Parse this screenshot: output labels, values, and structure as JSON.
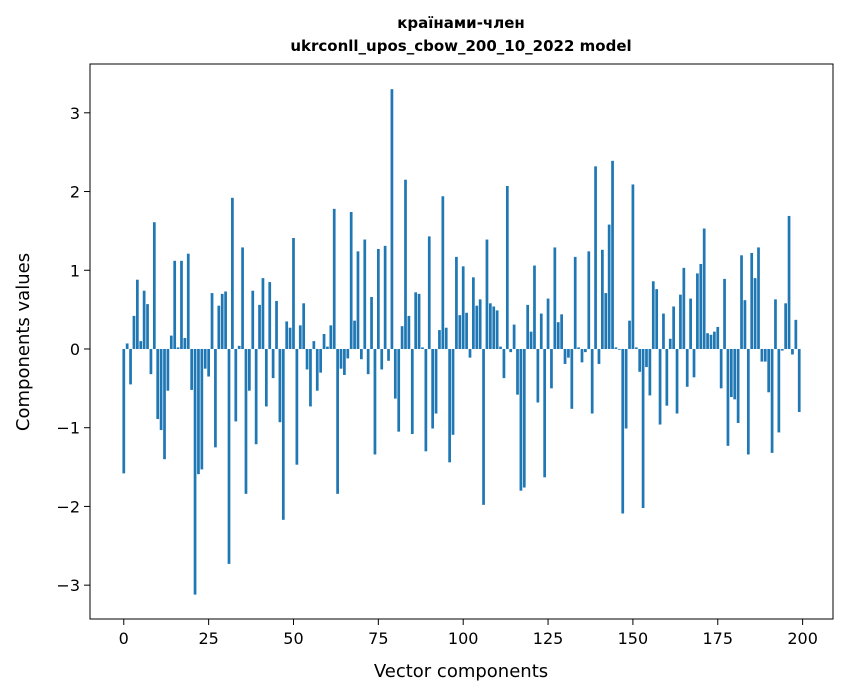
{
  "chart_data": {
    "type": "bar",
    "title_line1": "країнами-член",
    "title_line2": "ukrconll_upos_cbow_200_10_2022 model",
    "xlabel": "Vector components",
    "ylabel": "Components values",
    "xlim": [
      -9.95,
      208.95
    ],
    "ylim": [
      -3.43,
      3.62
    ],
    "xticks": [
      0,
      25,
      50,
      75,
      100,
      125,
      150,
      175,
      200
    ],
    "yticks": [
      -3,
      -2,
      -1,
      0,
      1,
      2,
      3
    ],
    "ytick_labels": [
      "−3",
      "−2",
      "−1",
      "0",
      "1",
      "2",
      "3"
    ],
    "bar_color": "#1f77b4",
    "grid": false,
    "x": [
      0,
      1,
      2,
      3,
      4,
      5,
      6,
      7,
      8,
      9,
      10,
      11,
      12,
      13,
      14,
      15,
      16,
      17,
      18,
      19,
      20,
      21,
      22,
      23,
      24,
      25,
      26,
      27,
      28,
      29,
      30,
      31,
      32,
      33,
      34,
      35,
      36,
      37,
      38,
      39,
      40,
      41,
      42,
      43,
      44,
      45,
      46,
      47,
      48,
      49,
      50,
      51,
      52,
      53,
      54,
      55,
      56,
      57,
      58,
      59,
      60,
      61,
      62,
      63,
      64,
      65,
      66,
      67,
      68,
      69,
      70,
      71,
      72,
      73,
      74,
      75,
      76,
      77,
      78,
      79,
      80,
      81,
      82,
      83,
      84,
      85,
      86,
      87,
      88,
      89,
      90,
      91,
      92,
      93,
      94,
      95,
      96,
      97,
      98,
      99,
      100,
      101,
      102,
      103,
      104,
      105,
      106,
      107,
      108,
      109,
      110,
      111,
      112,
      113,
      114,
      115,
      116,
      117,
      118,
      119,
      120,
      121,
      122,
      123,
      124,
      125,
      126,
      127,
      128,
      129,
      130,
      131,
      132,
      133,
      134,
      135,
      136,
      137,
      138,
      139,
      140,
      141,
      142,
      143,
      144,
      145,
      146,
      147,
      148,
      149,
      150,
      151,
      152,
      153,
      154,
      155,
      156,
      157,
      158,
      159,
      160,
      161,
      162,
      163,
      164,
      165,
      166,
      167,
      168,
      169,
      170,
      171,
      172,
      173,
      174,
      175,
      176,
      177,
      178,
      179,
      180,
      181,
      182,
      183,
      184,
      185,
      186,
      187,
      188,
      189,
      190,
      191,
      192,
      193,
      194,
      195,
      196,
      197,
      198,
      199
    ],
    "values": [
      -1.58,
      0.07,
      -0.45,
      0.42,
      0.88,
      0.1,
      0.74,
      0.57,
      -0.32,
      1.61,
      -0.89,
      -1.03,
      -1.4,
      -0.53,
      0.17,
      1.12,
      0.02,
      1.12,
      0.14,
      1.21,
      -0.52,
      -3.12,
      -1.59,
      -1.53,
      -0.25,
      -0.35,
      0.71,
      -1.25,
      0.55,
      0.7,
      0.73,
      -2.73,
      1.92,
      -0.92,
      0.04,
      1.29,
      -1.84,
      -0.53,
      0.74,
      -1.21,
      0.56,
      0.9,
      -0.73,
      0.85,
      -0.37,
      0.61,
      -0.93,
      -2.17,
      0.35,
      0.27,
      1.41,
      -1.47,
      0.3,
      0.58,
      -0.26,
      -0.73,
      0.1,
      -0.53,
      -0.3,
      0.19,
      0.03,
      0.3,
      1.78,
      -1.84,
      -0.25,
      -0.33,
      -0.12,
      1.74,
      0.36,
      1.24,
      -0.13,
      1.39,
      -0.32,
      0.66,
      -1.34,
      1.27,
      -0.26,
      1.31,
      -0.15,
      3.3,
      -0.63,
      -1.05,
      0.29,
      2.15,
      0.42,
      -1.08,
      0.72,
      0.7,
      0.02,
      -1.3,
      1.43,
      -1.01,
      -0.82,
      0.24,
      1.94,
      0.27,
      -1.44,
      -1.09,
      1.17,
      0.43,
      1.05,
      0.46,
      -0.11,
      0.91,
      0.55,
      0.63,
      -1.98,
      1.39,
      0.58,
      0.54,
      0.49,
      0.03,
      -0.37,
      2.07,
      -0.04,
      0.31,
      -0.58,
      -1.8,
      -1.76,
      0.56,
      0.22,
      1.06,
      -0.68,
      0.45,
      -1.63,
      0.64,
      -0.5,
      1.29,
      0.34,
      0.44,
      -0.19,
      -0.11,
      -0.76,
      1.17,
      0.02,
      -0.17,
      -0.04,
      1.24,
      -0.82,
      2.32,
      -0.19,
      1.26,
      0.71,
      1.58,
      2.39,
      0.02,
      -0.01,
      -2.09,
      -1.01,
      0.36,
      2.09,
      0.02,
      -0.29,
      -2.02,
      -0.23,
      -0.59,
      0.86,
      0.76,
      -0.96,
      0.45,
      -0.72,
      0.13,
      0.54,
      -0.82,
      0.69,
      1.03,
      -0.48,
      0.64,
      -0.36,
      0.96,
      1.08,
      1.53,
      0.2,
      0.18,
      0.22,
      0.28,
      -0.5,
      0.89,
      -1.23,
      -0.61,
      -0.64,
      -0.94,
      1.19,
      0.62,
      -1.34,
      1.22,
      0.9,
      1.29,
      -0.16,
      -0.16,
      -0.55,
      -1.32,
      0.63,
      -1.06,
      -0.02,
      0.58,
      1.69,
      -0.07,
      0.37,
      -0.8
    ]
  }
}
